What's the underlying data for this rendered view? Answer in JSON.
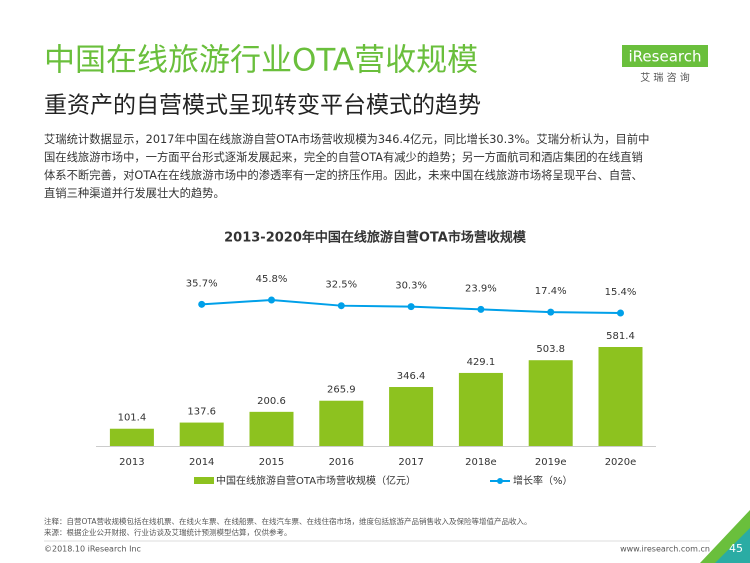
{
  "header": {
    "title": "中国在线旅游行业OTA营收规模",
    "subtitle": "重资产的自营模式呈现转变平台模式的趋势",
    "logo": "iResearch",
    "logo_sub": "艾 瑞 咨 询"
  },
  "paragraph": [
    "艾瑞统计数据显示，2017年中国在线旅游自营OTA市场营收规模为346.4亿元，同比增长30.3%。艾瑞分析认为，目前中",
    "国在线旅游市场中，一方面平台形式逐渐发展起来，完全的自营OTA有减少的趋势；另一方面航司和酒店集团的在线直销",
    "体系不断完善，对OTA在在线旅游市场中的渗透率有一定的挤压作用。因此，未来中国在线旅游市场将呈现平台、自营、",
    "直销三种渠道并行发展壮大的趋势。"
  ],
  "chart_data": {
    "type": "bar",
    "title": "2013-2020年中国在线旅游自营OTA市场营收规模",
    "categories": [
      "2013",
      "2014",
      "2015",
      "2016",
      "2017",
      "2018e",
      "2019e",
      "2020e"
    ],
    "series": [
      {
        "name": "中国在线旅游自营OTA市场营收规模（亿元）",
        "color": "#8dc21f",
        "values": [
          101.4,
          137.6,
          200.6,
          265.9,
          346.4,
          429.1,
          503.8,
          581.4
        ]
      },
      {
        "name": "增长率（%）",
        "type": "line",
        "color": "#00a0e9",
        "values": [
          null,
          35.7,
          45.8,
          32.5,
          30.3,
          23.9,
          17.4,
          15.4
        ],
        "value_labels": [
          null,
          "35.7%",
          "45.8%",
          "32.5%",
          "30.3%",
          "23.9%",
          "17.4%",
          "15.4%"
        ]
      }
    ]
  },
  "notes": [
    "注释：自营OTA营收规模包括在线机票、在线火车票、在线船票、在线汽车票、在线住宿市场，维度包括旅游产品销售收入及保险等增值产品收入。",
    "来源：根据企业公开财报、行业访谈及艾瑞统计预测模型估算，仅供参考。"
  ],
  "footer": {
    "copyright": "©2018.10 iResearch Inc",
    "url": "www.iresearch.com.cn",
    "page": 45
  }
}
